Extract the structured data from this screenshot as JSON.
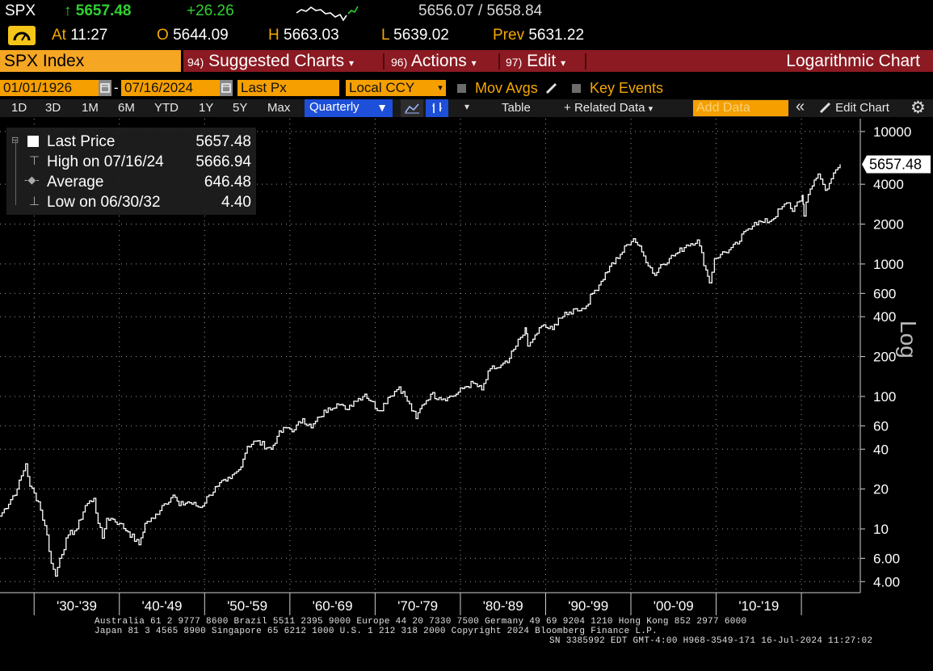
{
  "quote": {
    "ticker": "SPX",
    "arrow": "↑",
    "last": "5657.48",
    "change": "+26.26",
    "bid": "5656.07",
    "ask_sep": "/",
    "ask": "5658.84",
    "at_label": "At",
    "time": "11:27",
    "open_label": "O",
    "open": "5644.09",
    "high_label": "H",
    "high": "5663.03",
    "low_label": "L",
    "low": "5639.02",
    "prev_label": "Prev",
    "prev": "5631.22"
  },
  "menubar": {
    "security": "SPX Index",
    "suggested_num": "94)",
    "suggested": "Suggested Charts",
    "actions_num": "96)",
    "actions": "Actions",
    "edit_num": "97)",
    "edit": "Edit",
    "title": "Logarithmic Chart"
  },
  "params": {
    "start_date": "01/01/1926",
    "dash": "-",
    "end_date": "07/16/2024",
    "field": "Last Px",
    "currency": "Local CCY",
    "mov_avgs": "Mov Avgs",
    "key_events": "Key Events"
  },
  "toolbar": {
    "periods": [
      "1D",
      "3D",
      "1M",
      "6M",
      "YTD",
      "1Y",
      "5Y",
      "Max"
    ],
    "frequency": "Quarterly",
    "table": "Table",
    "related": "Related Data",
    "add_data_placeholder": "Add Data",
    "edit_chart": "Edit Chart"
  },
  "legend": {
    "last_label": "Last Price",
    "last_value": "5657.48",
    "high_label": "High on 07/16/24",
    "high_value": "5666.94",
    "avg_label": "Average",
    "avg_value": "646.48",
    "low_label": "Low on 06/30/32",
    "low_value": "4.40"
  },
  "axis": {
    "scale_label": "Log",
    "last_price_tag": "5657.48",
    "y_ticks": [
      "10000",
      "4000",
      "2000",
      "1000",
      "600",
      "400",
      "200",
      "100",
      "60",
      "40",
      "20",
      "10",
      "6.00",
      "4.00"
    ],
    "x_ticks": [
      "'30-'39",
      "'40-'49",
      "'50-'59",
      "'60-'69",
      "'70-'79",
      "'80-'89",
      "'90-'99",
      "'00-'09",
      "'10-'19"
    ]
  },
  "footer": {
    "line1": "Australia 61 2 9777 8600 Brazil 5511 2395 9000 Europe 44 20 7330 7500 Germany 49 69 9204 1210 Hong Kong 852 2977 6000",
    "line2": "Japan 81 3 4565 8900        Singapore 65 6212 1000        U.S. 1 212 318 2000                Copyright 2024 Bloomberg Finance L.P.",
    "line3": "SN 3385992 EDT  GMT-4:00 H968-3549-171 16-Jul-2024 11:27:02"
  },
  "colors": {
    "background": "#000000",
    "orange": "#f5a623",
    "red": "#8b1a22",
    "green": "#2fd12f",
    "amber": "#f5a800",
    "blue": "#1e4fd8"
  },
  "chart_data": {
    "type": "line",
    "scale": "log",
    "ylim": [
      3.3,
      12500
    ],
    "xlim": [
      1926.0,
      2024.54
    ],
    "series": [
      {
        "name": "Last Price",
        "x": [
          1926.0,
          1928.0,
          1929.0,
          1929.5,
          1930.5,
          1931.5,
          1932.0,
          1932.5,
          1933.0,
          1934.0,
          1935.0,
          1936.0,
          1937.0,
          1937.5,
          1938.0,
          1938.5,
          1939.0,
          1940.0,
          1941.0,
          1942.3,
          1943.0,
          1944.0,
          1945.0,
          1946.3,
          1947.0,
          1948.0,
          1949.5,
          1950.5,
          1951.5,
          1952.5,
          1953.0,
          1954.0,
          1955.0,
          1956.0,
          1957.8,
          1958.5,
          1959.5,
          1960.5,
          1961.5,
          1962.5,
          1963.5,
          1964.5,
          1965.5,
          1966.5,
          1967.5,
          1968.8,
          1969.5,
          1970.5,
          1971.5,
          1972.8,
          1973.5,
          1974.8,
          1975.5,
          1976.5,
          1977.5,
          1978.5,
          1979.5,
          1980.5,
          1981.5,
          1982.5,
          1983.5,
          1984.5,
          1985.5,
          1986.5,
          1987.6,
          1987.9,
          1988.5,
          1989.5,
          1990.8,
          1991.5,
          1992.5,
          1993.5,
          1994.5,
          1995.5,
          1996.5,
          1997.5,
          1998.5,
          1999.5,
          2000.3,
          2000.8,
          2001.5,
          2002.8,
          2003.5,
          2004.5,
          2005.5,
          2006.5,
          2007.8,
          2008.8,
          2009.2,
          2009.8,
          2010.5,
          2011.5,
          2012.5,
          2013.5,
          2014.5,
          2015.5,
          2016.5,
          2017.5,
          2018.5,
          2018.95,
          2019.5,
          2020.1,
          2020.3,
          2020.8,
          2021.5,
          2021.95,
          2022.8,
          2023.5,
          2024.54
        ],
        "values": [
          12.5,
          20,
          31,
          21,
          16,
          9,
          5.5,
          4.4,
          6,
          9,
          10,
          15,
          17,
          11,
          8.5,
          12,
          12,
          11,
          9.5,
          7.6,
          11,
          12,
          15,
          18,
          15,
          16,
          14.5,
          18,
          21,
          23,
          24,
          28,
          42,
          46,
          40,
          50,
          58,
          56,
          68,
          58,
          70,
          82,
          88,
          80,
          92,
          104,
          92,
          78,
          98,
          118,
          100,
          68,
          86,
          104,
          98,
          98,
          104,
          118,
          126,
          112,
          162,
          165,
          180,
          240,
          330,
          240,
          270,
          340,
          320,
          390,
          415,
          460,
          460,
          600,
          740,
          960,
          1100,
          1400,
          1550,
          1390,
          1150,
          820,
          990,
          1100,
          1220,
          1390,
          1520,
          900,
          720,
          1100,
          1180,
          1280,
          1420,
          1800,
          2060,
          2060,
          2150,
          2600,
          2900,
          2500,
          2940,
          3300,
          2300,
          3350,
          4300,
          4780,
          3600,
          4400,
          5657.48
        ]
      }
    ]
  }
}
